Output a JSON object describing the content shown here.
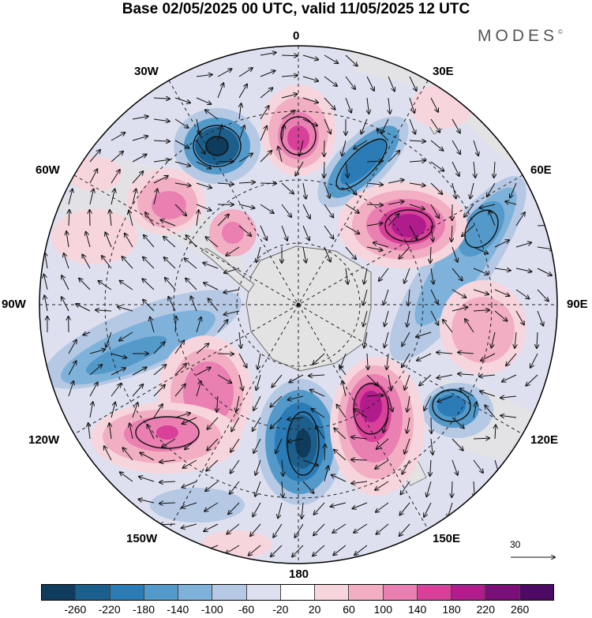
{
  "title": "Base 02/05/2025 00 UTC, valid 11/05/2025 12 UTC",
  "brand": {
    "name": "MODES",
    "mark": "©"
  },
  "map": {
    "projection": "south-polar-stereographic",
    "longitude_labels": [
      "0",
      "30E",
      "60E",
      "90E",
      "120E",
      "150E",
      "180",
      "150W",
      "120W",
      "90W",
      "60W",
      "30W"
    ],
    "reference_vector_label": "30",
    "palette": {
      "land": "#e3e3e3",
      "coast": "#6a6a6a",
      "grid": "#222222",
      "vector": "#111111",
      "contour": "#111111"
    }
  },
  "colorbar": {
    "ticks": [
      "-260",
      "-220",
      "-180",
      "-140",
      "-100",
      "-60",
      "-20",
      "20",
      "60",
      "100",
      "140",
      "180",
      "220",
      "260"
    ],
    "colors": [
      "#0f3b5c",
      "#1c5f8c",
      "#2b7bb6",
      "#5399c9",
      "#7fb2da",
      "#b5c8e4",
      "#dee0ef",
      "#ffffff",
      "#f7d5dd",
      "#f2aec3",
      "#ea7fb1",
      "#d8409a",
      "#b11c8c",
      "#7a0f78",
      "#4c0a62"
    ]
  }
}
